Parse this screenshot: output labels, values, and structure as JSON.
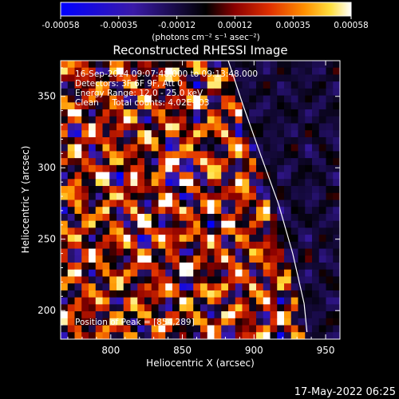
{
  "colorbar": {
    "ticks": [
      "-0.00058",
      "-0.00035",
      "-0.00012",
      "0.00012",
      "0.00035",
      "0.00058"
    ],
    "units": "(photons cm⁻² s⁻¹ asec⁻²)",
    "colors": [
      "#0000ff",
      "#3a1aa8",
      "#000000",
      "#8b0000",
      "#e03000",
      "#ff9000",
      "#ffe040",
      "#ffffff"
    ]
  },
  "chart_data": {
    "type": "heatmap",
    "title": "Reconstructed RHESSI Image",
    "xlabel": "Heliocentric X (arcsec)",
    "ylabel": "Heliocentric Y (arcsec)",
    "xlim": [
      765,
      960
    ],
    "ylim": [
      180,
      375
    ],
    "xticks": [
      800,
      850,
      900,
      950
    ],
    "yticks": [
      200,
      250,
      300,
      350
    ],
    "value_range": [
      -0.00058,
      0.00058
    ],
    "limb_line": {
      "x": [
        882,
        893,
        905,
        917,
        927,
        935,
        937
      ],
      "y": [
        375,
        342,
        308,
        275,
        240,
        205,
        185
      ]
    },
    "peak": [
      854,
      289
    ],
    "annotations": [
      "16-Sep-2014 09:07:48.000 to 09:13:48.000",
      "Detectors: 3F 6F 9F, Att 0",
      "Energy Range: 12.0 - 25.0 keV",
      "Clean     Total counts: 4.02E+03",
      "Position of Peak = [854,289]"
    ],
    "grid": false,
    "legend": "none"
  },
  "timestamp": "17-May-2022 06:25"
}
